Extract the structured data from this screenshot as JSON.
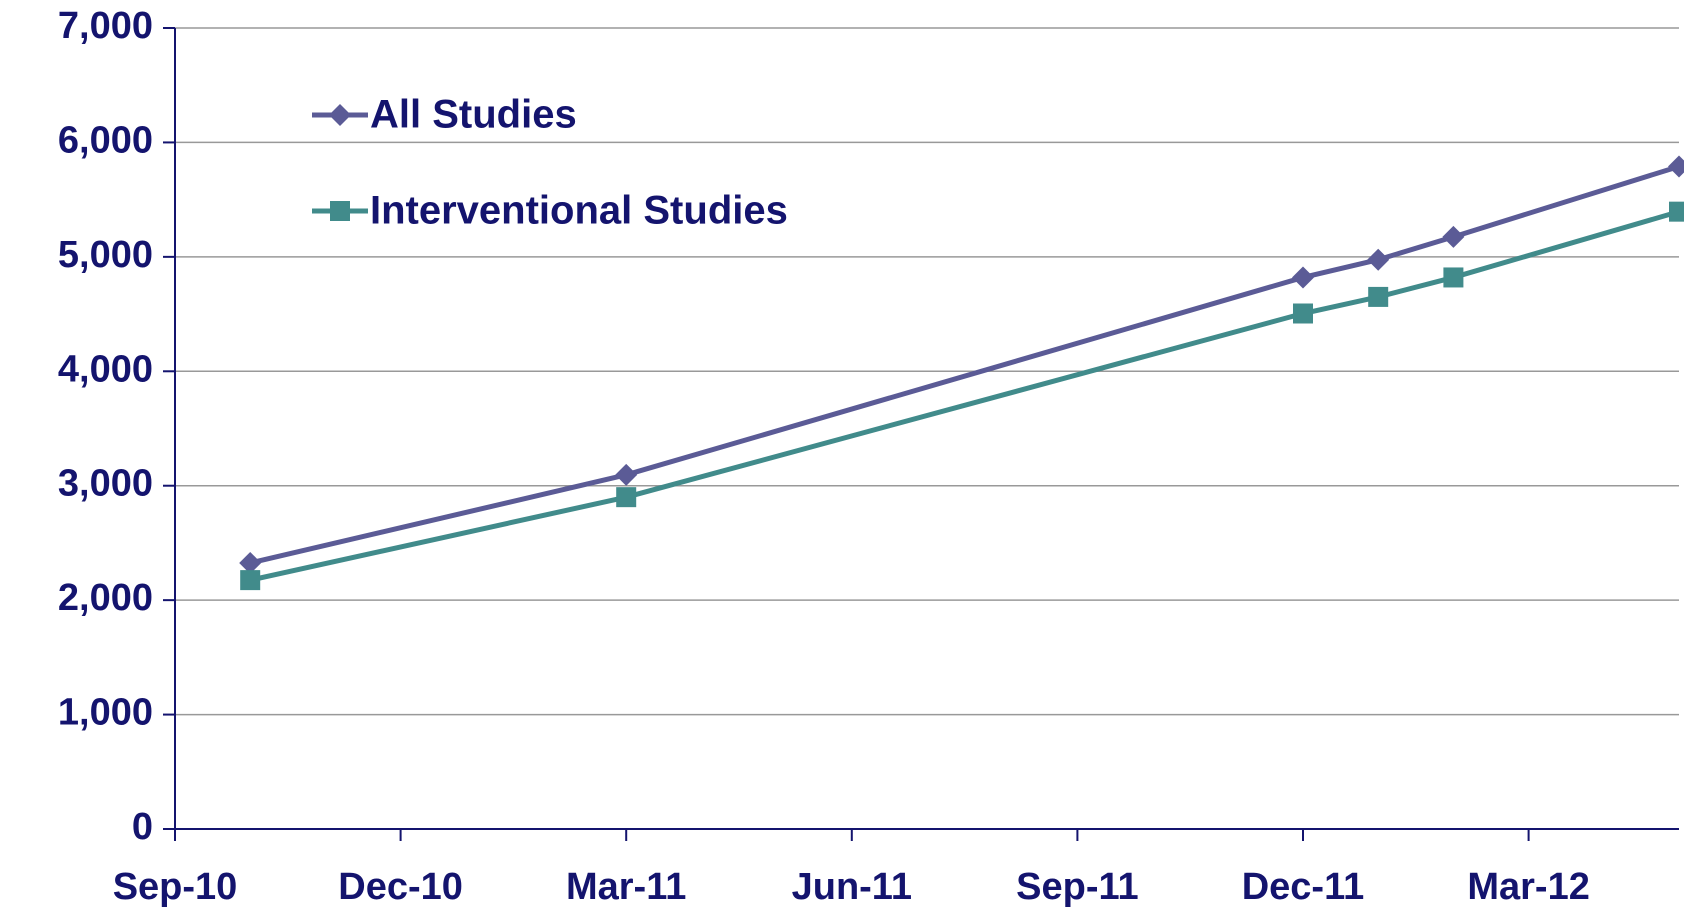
{
  "chart_data": {
    "type": "line",
    "x": [
      "2010-10",
      "2011-03",
      "2011-12",
      "2012-01",
      "2012-02",
      "2012-05"
    ],
    "series": [
      {
        "name": "All Studies",
        "color": "#5b5b96",
        "marker": "diamond",
        "values": [
          2325,
          3095,
          4820,
          4975,
          5175,
          5790
        ]
      },
      {
        "name": "Interventional Studies",
        "color": "#418b8b",
        "marker": "square",
        "values": [
          2175,
          2900,
          4505,
          4650,
          4820,
          5395
        ]
      }
    ],
    "xlim": [
      "2010-09",
      "2012-05"
    ],
    "xticks": [
      {
        "value": "2010-09",
        "label": "Sep-10"
      },
      {
        "value": "2010-12",
        "label": "Dec-10"
      },
      {
        "value": "2011-03",
        "label": "Mar-11"
      },
      {
        "value": "2011-06",
        "label": "Jun-11"
      },
      {
        "value": "2011-09",
        "label": "Sep-11"
      },
      {
        "value": "2011-12",
        "label": "Dec-11"
      },
      {
        "value": "2012-03",
        "label": "Mar-12"
      }
    ],
    "ylim": [
      0,
      7000
    ],
    "yticks": [
      {
        "value": 0,
        "label": "0"
      },
      {
        "value": 1000,
        "label": "1,000"
      },
      {
        "value": 2000,
        "label": "2,000"
      },
      {
        "value": 3000,
        "label": "3,000"
      },
      {
        "value": 4000,
        "label": "4,000"
      },
      {
        "value": 5000,
        "label": "5,000"
      },
      {
        "value": 6000,
        "label": "6,000"
      },
      {
        "value": 7000,
        "label": "7,000"
      }
    ],
    "grid": true,
    "legend": "upper left"
  }
}
